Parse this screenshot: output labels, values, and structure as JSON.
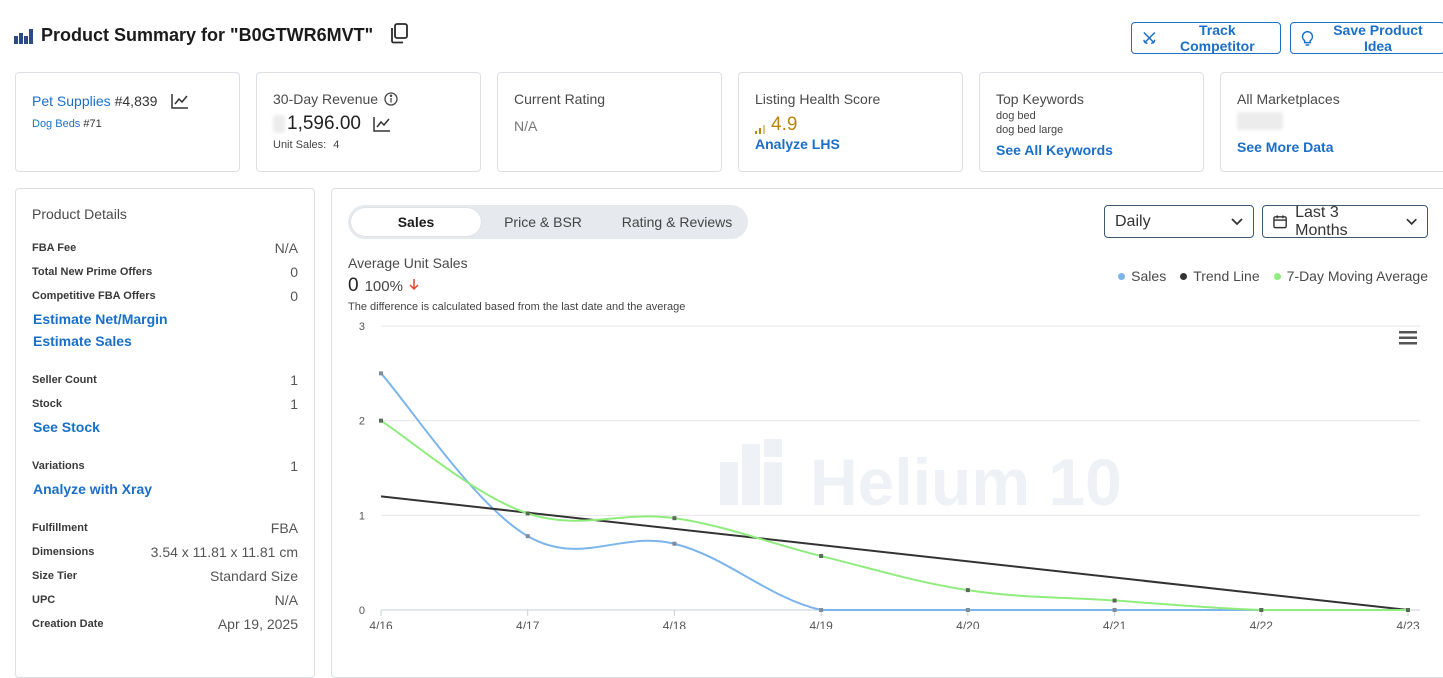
{
  "header": {
    "title": "Product Summary for \"B0GTWR6MVT\"",
    "track_competitor": "Track Competitor",
    "save_product_idea": "Save Product Idea"
  },
  "cards": {
    "bsr": {
      "category": "Pet Supplies",
      "rank": "#4,839",
      "subcategory": "Dog Beds",
      "subrank": "#71"
    },
    "revenue": {
      "label": "30-Day Revenue",
      "value": "1,596.00",
      "unit_sales_label": "Unit Sales:",
      "unit_sales": "4"
    },
    "rating": {
      "label": "Current Rating",
      "value": "N/A"
    },
    "lhs": {
      "label": "Listing Health Score",
      "value": "4.9",
      "link": "Analyze LHS"
    },
    "keywords": {
      "label": "Top Keywords",
      "items": [
        "dog bed",
        "dog bed large"
      ],
      "link": "See All Keywords"
    },
    "marketplaces": {
      "label": "All Marketplaces",
      "link": "See More Data"
    }
  },
  "details": {
    "title": "Product Details",
    "fba_fee": {
      "k": "FBA Fee",
      "v": "N/A"
    },
    "prime_offers": {
      "k": "Total New Prime Offers",
      "v": "0"
    },
    "fba_offers": {
      "k": "Competitive FBA Offers",
      "v": "0"
    },
    "estimate_net": "Estimate Net/Margin",
    "estimate_sales": "Estimate Sales",
    "seller_count": {
      "k": "Seller Count",
      "v": "1"
    },
    "stock": {
      "k": "Stock",
      "v": "1"
    },
    "see_stock": "See Stock",
    "variations": {
      "k": "Variations",
      "v": "1"
    },
    "analyze_xray": "Analyze with Xray",
    "fulfillment": {
      "k": "Fulfillment",
      "v": "FBA"
    },
    "dimensions": {
      "k": "Dimensions",
      "v": "3.54 x 11.81 x 11.81 cm"
    },
    "size_tier": {
      "k": "Size Tier",
      "v": "Standard Size"
    },
    "upc": {
      "k": "UPC",
      "v": "N/A"
    },
    "creation_date": {
      "k": "Creation Date",
      "v": "Apr 19, 2025"
    }
  },
  "chart_panel": {
    "tabs": [
      "Sales",
      "Price & BSR",
      "Rating & Reviews"
    ],
    "interval": "Daily",
    "range": "Last 3 Months",
    "avg_label": "Average Unit Sales",
    "avg_value": "0",
    "avg_change": "100%",
    "note": "The difference is calculated based from the last date and the average",
    "watermark": "Helium 10"
  },
  "colors": {
    "accent": "#1a6fc9",
    "sales": "#7cb5ec",
    "trend": "#333333",
    "moving_avg": "#90ed7d",
    "lhs": "#b8860b",
    "down": "#e0452f"
  },
  "chart_data": {
    "type": "line",
    "x": [
      "4/16",
      "4/17",
      "4/18",
      "4/19",
      "4/20",
      "4/21",
      "4/22",
      "4/23"
    ],
    "ylim": [
      0,
      3
    ],
    "yticks": [
      "0",
      "1",
      "2",
      "3"
    ],
    "series": [
      {
        "name": "Sales",
        "values": [
          2.5,
          0.78,
          0.7,
          0,
          0,
          0,
          0,
          0
        ]
      },
      {
        "name": "Trend Line",
        "values": [
          1.2,
          null,
          null,
          null,
          null,
          null,
          null,
          0
        ]
      },
      {
        "name": "7-Day Moving Average",
        "values": [
          2.0,
          1.02,
          0.97,
          0.57,
          0.21,
          0.1,
          0,
          0
        ]
      }
    ]
  }
}
